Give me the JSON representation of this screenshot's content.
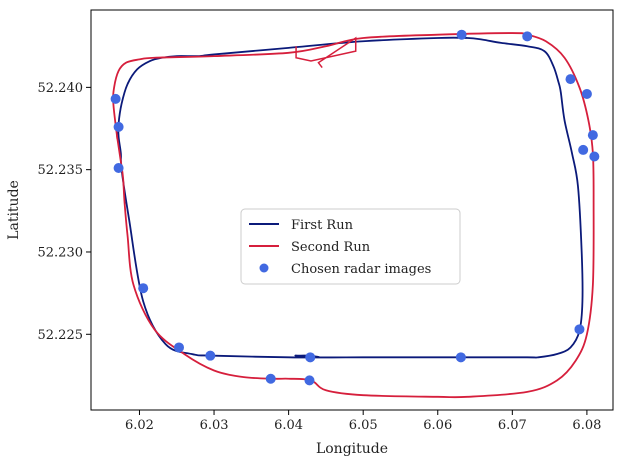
{
  "chart_data": {
    "type": "line",
    "title": "",
    "xlabel": "Longitude",
    "ylabel": "Latitude",
    "xlim": [
      6.0135,
      6.0835
    ],
    "ylim": [
      52.2204,
      52.2447
    ],
    "xticks": [
      6.02,
      6.03,
      6.04,
      6.05,
      6.06,
      6.07,
      6.08
    ],
    "xtick_labels": [
      "6.02",
      "6.03",
      "6.04",
      "6.05",
      "6.06",
      "6.07",
      "6.08"
    ],
    "yticks": [
      52.225,
      52.23,
      52.235,
      52.24
    ],
    "ytick_labels": [
      "52.225",
      "52.230",
      "52.235",
      "52.240"
    ],
    "grid": false,
    "legend_position": "center",
    "series": [
      {
        "name": "First Run",
        "kind": "line",
        "color": "#0b1a7a",
        "x": [
          6.0175,
          6.0172,
          6.0172,
          6.0176,
          6.0184,
          6.0197,
          6.0214,
          6.023,
          6.025,
          6.028,
          6.03,
          6.04,
          6.05,
          6.06,
          6.064,
          6.066,
          6.0685,
          6.072,
          6.0743,
          6.0755,
          6.0762,
          6.0765,
          6.077,
          6.078,
          6.0788,
          6.0793,
          6.0794,
          6.079,
          6.0778,
          6.076,
          6.0735,
          6.072,
          6.064,
          6.058,
          6.05,
          6.044,
          6.0412,
          6.041,
          6.0413,
          6.0426,
          6.044,
          6.04,
          6.03,
          6.027,
          6.0235,
          6.0205,
          6.0186,
          6.0176
        ],
        "y": [
          52.236,
          52.237,
          52.2378,
          52.239,
          52.2402,
          52.2411,
          52.2416,
          52.2418,
          52.2419,
          52.2419,
          52.242,
          52.2424,
          52.2428,
          52.243,
          52.243,
          52.2429,
          52.2427,
          52.2425,
          52.2422,
          52.2413,
          52.2403,
          52.2397,
          52.238,
          52.236,
          52.234,
          52.23,
          52.227,
          52.2252,
          52.2242,
          52.2238,
          52.2236,
          52.2236,
          52.2236,
          52.2236,
          52.2236,
          52.2236,
          52.2237,
          52.2237,
          52.2237,
          52.2237,
          52.2236,
          52.2236,
          52.2237,
          52.2238,
          52.2244,
          52.227,
          52.232,
          52.235
        ]
      },
      {
        "name": "Second Run",
        "kind": "line",
        "color": "#d61f3c",
        "x": [
          6.017,
          6.0165,
          6.0166,
          6.0172,
          6.0182,
          6.02,
          6.022,
          6.03,
          6.04,
          6.045,
          6.05,
          6.06,
          6.07,
          6.072,
          6.0745,
          6.077,
          6.079,
          6.0802,
          6.0808,
          6.0809,
          6.0808,
          6.08,
          6.0785,
          6.076,
          6.072,
          6.064,
          6.06,
          6.05,
          6.045,
          6.043,
          6.04,
          6.038,
          6.034,
          6.03,
          6.026,
          6.022,
          6.0192,
          6.0184,
          6.018,
          6.0178,
          6.0175,
          6.017
        ],
        "y": [
          52.237,
          52.239,
          52.24,
          52.241,
          52.2415,
          52.2417,
          52.2418,
          52.2419,
          52.2421,
          52.2425,
          52.243,
          52.2432,
          52.2433,
          52.2432,
          52.2428,
          52.2418,
          52.24,
          52.238,
          52.236,
          52.233,
          52.228,
          52.225,
          52.2234,
          52.2222,
          52.2215,
          52.2212,
          52.2212,
          52.2213,
          52.2216,
          52.2222,
          52.2223,
          52.2223,
          52.2224,
          52.2228,
          52.2238,
          52.2253,
          52.228,
          52.231,
          52.233,
          52.2345,
          52.2355,
          52.237
        ]
      },
      {
        "name": "Chosen radar images",
        "kind": "scatter",
        "color": "#4169e1",
        "x": [
          6.0168,
          6.0172,
          6.0172,
          6.0205,
          6.0253,
          6.0295,
          6.0376,
          6.0428,
          6.0429,
          6.0631,
          6.0632,
          6.072,
          6.0778,
          6.08,
          6.0808,
          6.081,
          6.0795,
          6.079
        ],
        "y": [
          52.2393,
          52.2376,
          52.2351,
          52.2278,
          52.2242,
          52.2237,
          52.2223,
          52.2222,
          52.2236,
          52.2236,
          52.2432,
          52.2431,
          52.2405,
          52.2396,
          52.2371,
          52.2358,
          52.2362,
          52.2253
        ]
      }
    ],
    "spur": {
      "color": "#d61f3c",
      "x": [
        6.041,
        6.041,
        6.043,
        6.049,
        6.049,
        6.045,
        6.044,
        6.0445
      ],
      "y": [
        52.2425,
        52.2418,
        52.2416,
        52.2422,
        52.243,
        52.2418,
        52.2415,
        52.2412
      ]
    }
  }
}
